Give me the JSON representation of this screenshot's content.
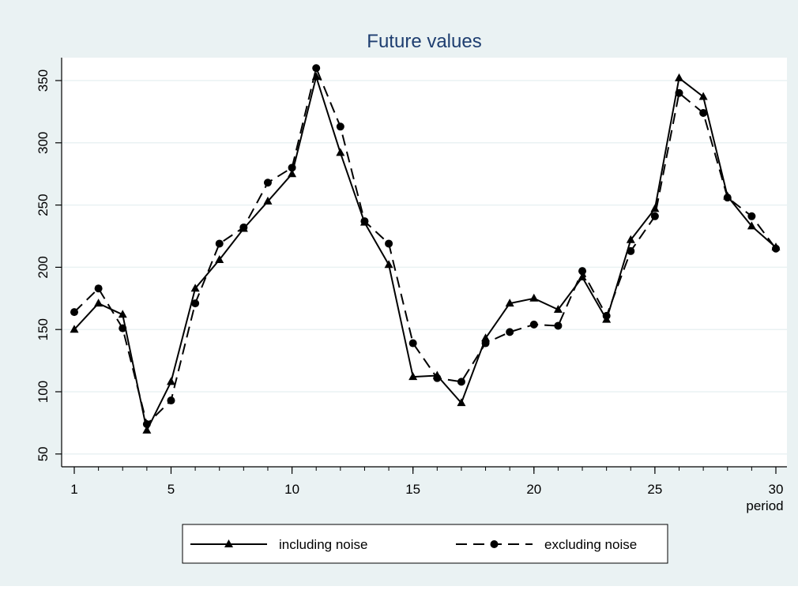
{
  "chart_data": {
    "type": "line",
    "title": "Future values",
    "xlabel": "period",
    "ylabel": "",
    "xlim": [
      1,
      30
    ],
    "ylim": [
      50,
      360
    ],
    "x_ticks": [
      1,
      5,
      10,
      15,
      20,
      25,
      30
    ],
    "y_ticks": [
      50,
      100,
      150,
      200,
      250,
      300,
      350
    ],
    "grid": true,
    "legend_position": "bottom",
    "colors": {
      "outer_background": "#eaf2f3",
      "plot_background": "#ffffff",
      "gridline": "#eaf2f3",
      "series": "#000000",
      "title": "#1e3e70"
    },
    "x": [
      1,
      2,
      3,
      4,
      5,
      6,
      7,
      8,
      9,
      10,
      11,
      12,
      13,
      14,
      15,
      16,
      17,
      18,
      19,
      20,
      21,
      22,
      23,
      24,
      25,
      26,
      27,
      28,
      29,
      30
    ],
    "series": [
      {
        "name": "including noise",
        "line_style": "solid",
        "marker": "triangle",
        "values": [
          150,
          171,
          162,
          69,
          108,
          183,
          206,
          231,
          253,
          275,
          353,
          292,
          236,
          202,
          112,
          113,
          91,
          143,
          171,
          175,
          166,
          192,
          158,
          222,
          247,
          352,
          337,
          257,
          233,
          216
        ]
      },
      {
        "name": "excluding noise",
        "line_style": "dashed",
        "marker": "circle",
        "values": [
          164,
          183,
          151,
          74,
          93,
          171,
          219,
          232,
          268,
          280,
          360,
          313,
          237,
          219,
          139,
          111,
          108,
          139,
          148,
          154,
          153,
          197,
          161,
          213,
          241,
          340,
          324,
          256,
          241,
          215
        ]
      }
    ]
  }
}
